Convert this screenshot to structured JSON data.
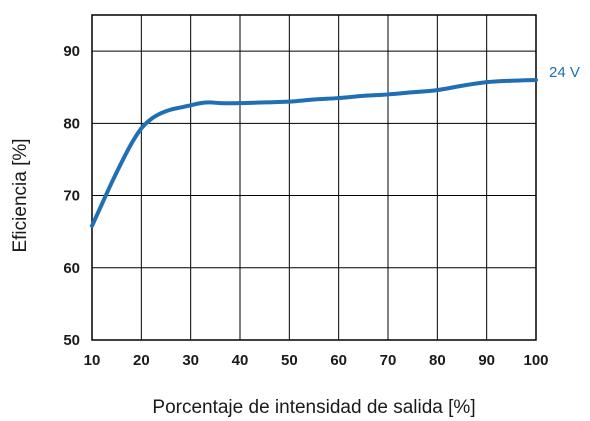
{
  "chart_data": {
    "type": "line",
    "title": "",
    "xlabel": "Porcentaje de intensidad de salida [%]",
    "ylabel": "Eficiencia [%]",
    "xlim": [
      10,
      100
    ],
    "ylim": [
      50,
      95
    ],
    "grid": true,
    "x_ticks": [
      "10",
      "20",
      "30",
      "40",
      "50",
      "60",
      "70",
      "80",
      "90",
      "100"
    ],
    "y_ticks": [
      "50",
      "60",
      "70",
      "80",
      "90"
    ],
    "series": [
      {
        "name": "24 V",
        "color": "#1f6fb5",
        "x": [
          10,
          12,
          14,
          16,
          18,
          20,
          22,
          24,
          26,
          28,
          30,
          32,
          34,
          36,
          40,
          45,
          50,
          55,
          60,
          65,
          70,
          75,
          80,
          85,
          90,
          95,
          100
        ],
        "y": [
          65.8,
          68.8,
          71.8,
          74.6,
          77.2,
          79.3,
          80.6,
          81.4,
          81.9,
          82.2,
          82.5,
          82.8,
          82.9,
          82.8,
          82.8,
          82.9,
          83.0,
          83.3,
          83.5,
          83.8,
          84.0,
          84.3,
          84.6,
          85.2,
          85.7,
          85.9,
          86.0
        ]
      }
    ]
  }
}
